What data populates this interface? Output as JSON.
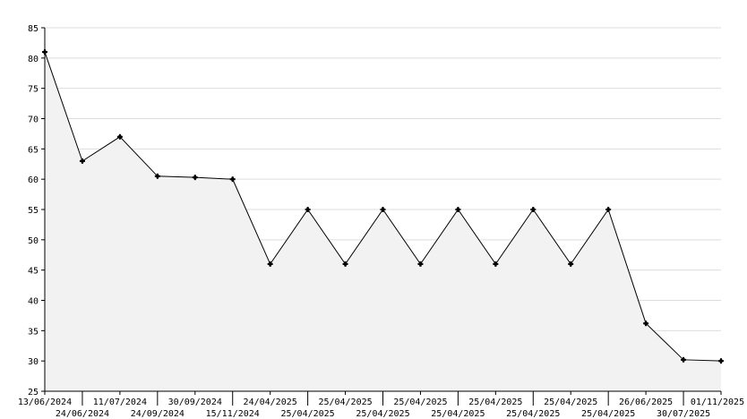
{
  "chart_data": {
    "type": "area",
    "title": "",
    "xlabel": "",
    "ylabel": "",
    "ylim": [
      25,
      85
    ],
    "yticks": [
      25,
      30,
      35,
      40,
      45,
      50,
      55,
      60,
      65,
      70,
      75,
      80,
      85
    ],
    "grid": true,
    "colors": {
      "line": "#000000",
      "fill": "#f2f2f2",
      "grid": "#dddddd"
    },
    "categories": [
      "13/06/2024",
      "24/06/2024",
      "11/07/2024",
      "24/09/2024",
      "30/09/2024",
      "15/11/2024",
      "24/04/2025",
      "25/04/2025",
      "25/04/2025",
      "25/04/2025",
      "25/04/2025",
      "25/04/2025",
      "25/04/2025",
      "25/04/2025",
      "25/04/2025",
      "25/04/2025",
      "26/06/2025",
      "30/07/2025",
      "01/11/2025"
    ],
    "values": [
      81,
      63,
      67,
      60.5,
      60.3,
      60,
      46,
      55,
      46,
      55,
      46,
      55,
      46,
      55,
      46,
      55,
      36.2,
      30.2,
      30
    ]
  }
}
